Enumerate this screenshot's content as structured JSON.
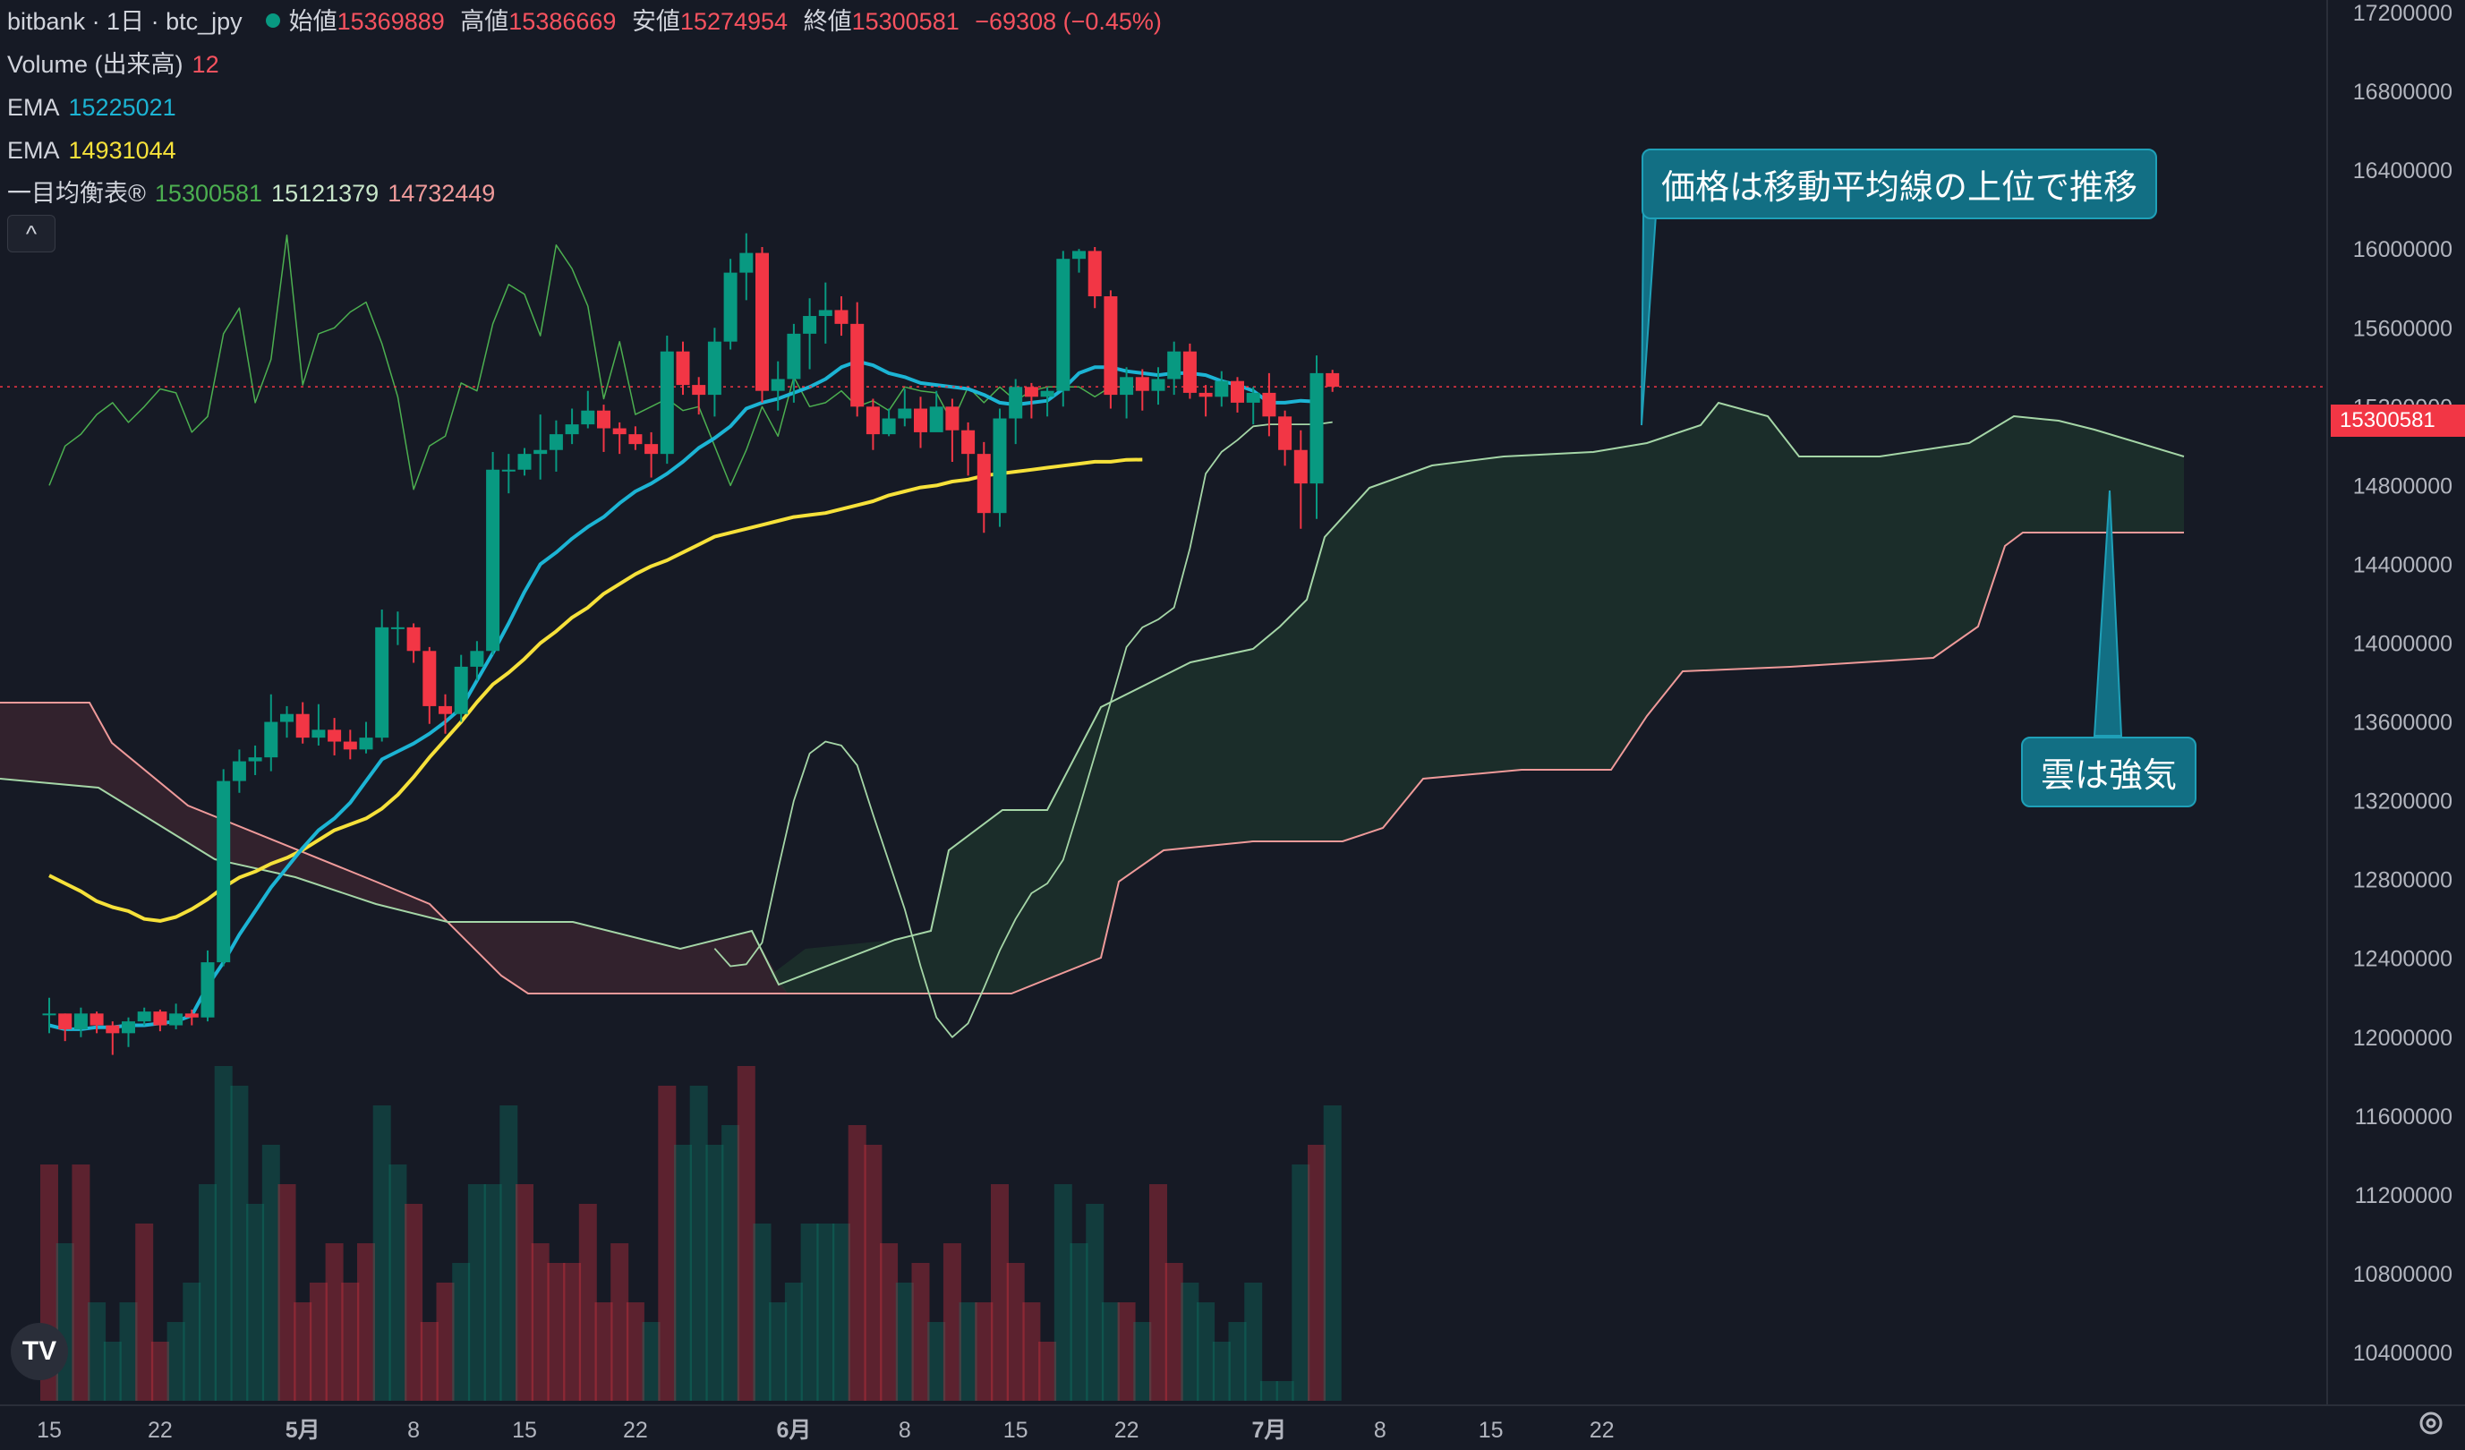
{
  "legend": {
    "symbol": "bitbank · 1日 · btc_jpy",
    "open_label": "始値",
    "open": "15369889",
    "high_label": "高値",
    "high": "15386669",
    "low_label": "安値",
    "low": "15274954",
    "close_label": "終値",
    "close": "15300581",
    "change": "−69308 (−0.45%)",
    "volume_label": "Volume (出来高)",
    "volume_value": "12",
    "ema1_label": "EMA",
    "ema1_value": "15225021",
    "ema2_label": "EMA",
    "ema2_value": "14931044",
    "ichimoku_label": "一目均衡表®",
    "ichimoku_v1": "15300581",
    "ichimoku_v2": "15121379",
    "ichimoku_v3": "14732449",
    "collapse_icon": "^"
  },
  "callouts": {
    "top": "価格は移動平均線の上位で推移",
    "bottom": "雲は強気"
  },
  "current_price_tag": "15300581",
  "logo_text": "TV",
  "colors": {
    "up": "#089981",
    "down": "#f23645",
    "background": "#161a25",
    "ema_fast": "#1cb4d4",
    "ema_slow": "#f6e13a",
    "conversion": "#4caf50",
    "leading_a": "#a5d6a7",
    "leading_b": "#ef9a9a"
  },
  "chart_data": {
    "type": "candlestick",
    "y_axis": {
      "ticks": [
        "17200000",
        "16800000",
        "16400000",
        "16000000",
        "15600000",
        "15200000",
        "14800000",
        "14400000",
        "14000000",
        "13600000",
        "13200000",
        "12800000",
        "12400000",
        "12000000",
        "11600000",
        "11200000",
        "10800000",
        "10400000"
      ],
      "range": [
        10200000,
        17400000
      ]
    },
    "x_axis": {
      "ticks": [
        {
          "label": "15",
          "day": 0
        },
        {
          "label": "22",
          "day": 7
        },
        {
          "label": "5月",
          "day": 16
        },
        {
          "label": "8",
          "day": 23
        },
        {
          "label": "15",
          "day": 30
        },
        {
          "label": "22",
          "day": 37
        },
        {
          "label": "6月",
          "day": 47
        },
        {
          "label": "8",
          "day": 54
        },
        {
          "label": "15",
          "day": 61
        },
        {
          "label": "22",
          "day": 68
        },
        {
          "label": "7月",
          "day": 77
        },
        {
          "label": "8",
          "day": 84
        },
        {
          "label": "15",
          "day": 91
        },
        {
          "label": "22",
          "day": 98
        }
      ]
    },
    "candles": [
      [
        12120000,
        12120000,
        12200000,
        12020000
      ],
      [
        12120000,
        12040000,
        12120000,
        11980000
      ],
      [
        12040000,
        12120000,
        12150000,
        12000000
      ],
      [
        12120000,
        12060000,
        12130000,
        12020000
      ],
      [
        12060000,
        12020000,
        12080000,
        11910000
      ],
      [
        12020000,
        12080000,
        12100000,
        11950000
      ],
      [
        12080000,
        12130000,
        12150000,
        12060000
      ],
      [
        12130000,
        12060000,
        12140000,
        12030000
      ],
      [
        12060000,
        12120000,
        12170000,
        12040000
      ],
      [
        12120000,
        12100000,
        12140000,
        12060000
      ],
      [
        12100000,
        12380000,
        12440000,
        12080000
      ],
      [
        12380000,
        13300000,
        13360000,
        12360000
      ],
      [
        13300000,
        13400000,
        13460000,
        13240000
      ],
      [
        13400000,
        13420000,
        13480000,
        13330000
      ],
      [
        13420000,
        13600000,
        13740000,
        13350000
      ],
      [
        13600000,
        13640000,
        13680000,
        13520000
      ],
      [
        13640000,
        13520000,
        13700000,
        13490000
      ],
      [
        13520000,
        13560000,
        13690000,
        13480000
      ],
      [
        13560000,
        13500000,
        13620000,
        13430000
      ],
      [
        13500000,
        13460000,
        13560000,
        13410000
      ],
      [
        13460000,
        13520000,
        13600000,
        13440000
      ],
      [
        13520000,
        14080000,
        14170000,
        13500000
      ],
      [
        14080000,
        14080000,
        14160000,
        13990000
      ],
      [
        14080000,
        13960000,
        14100000,
        13900000
      ],
      [
        13960000,
        13680000,
        13980000,
        13590000
      ],
      [
        13680000,
        13640000,
        13740000,
        13540000
      ],
      [
        13640000,
        13880000,
        13940000,
        13600000
      ],
      [
        13880000,
        13960000,
        14010000,
        13810000
      ],
      [
        13960000,
        14880000,
        14970000,
        13940000
      ],
      [
        14880000,
        14880000,
        14960000,
        14760000
      ],
      [
        14880000,
        14960000,
        14990000,
        14850000
      ],
      [
        14960000,
        14980000,
        15160000,
        14830000
      ],
      [
        14980000,
        15060000,
        15130000,
        14870000
      ],
      [
        15060000,
        15110000,
        15190000,
        15010000
      ],
      [
        15110000,
        15180000,
        15280000,
        15090000
      ],
      [
        15180000,
        15090000,
        15210000,
        14970000
      ],
      [
        15090000,
        15060000,
        15120000,
        14960000
      ],
      [
        15060000,
        15010000,
        15100000,
        14980000
      ],
      [
        15010000,
        14960000,
        15070000,
        14840000
      ],
      [
        14960000,
        15480000,
        15560000,
        14910000
      ],
      [
        15480000,
        15310000,
        15530000,
        15260000
      ],
      [
        15310000,
        15260000,
        15350000,
        15160000
      ],
      [
        15260000,
        15530000,
        15600000,
        15150000
      ],
      [
        15530000,
        15880000,
        15950000,
        15490000
      ],
      [
        15880000,
        15980000,
        16080000,
        15740000
      ],
      [
        15980000,
        15280000,
        16010000,
        15220000
      ],
      [
        15280000,
        15340000,
        15430000,
        15180000
      ],
      [
        15340000,
        15570000,
        15620000,
        15220000
      ],
      [
        15570000,
        15660000,
        15750000,
        15390000
      ],
      [
        15660000,
        15690000,
        15830000,
        15520000
      ],
      [
        15690000,
        15620000,
        15760000,
        15560000
      ],
      [
        15620000,
        15200000,
        15730000,
        15150000
      ],
      [
        15200000,
        15060000,
        15240000,
        14980000
      ],
      [
        15060000,
        15140000,
        15190000,
        15050000
      ],
      [
        15140000,
        15190000,
        15290000,
        15100000
      ],
      [
        15190000,
        15070000,
        15250000,
        14990000
      ],
      [
        15070000,
        15200000,
        15280000,
        15100000
      ],
      [
        15200000,
        15080000,
        15240000,
        14920000
      ],
      [
        15080000,
        14960000,
        15120000,
        14850000
      ],
      [
        14960000,
        14660000,
        15020000,
        14560000
      ],
      [
        14660000,
        15140000,
        15190000,
        14590000
      ],
      [
        15140000,
        15300000,
        15340000,
        15010000
      ],
      [
        15300000,
        15250000,
        15320000,
        15140000
      ],
      [
        15250000,
        15280000,
        15300000,
        15150000
      ],
      [
        15280000,
        15950000,
        15990000,
        15200000
      ],
      [
        15950000,
        15990000,
        16000000,
        15880000
      ],
      [
        15990000,
        15760000,
        16010000,
        15700000
      ],
      [
        15760000,
        15260000,
        15790000,
        15190000
      ],
      [
        15260000,
        15350000,
        15400000,
        15140000
      ],
      [
        15350000,
        15280000,
        15390000,
        15180000
      ],
      [
        15280000,
        15340000,
        15400000,
        15210000
      ],
      [
        15340000,
        15480000,
        15530000,
        15260000
      ],
      [
        15480000,
        15270000,
        15520000,
        15240000
      ],
      [
        15270000,
        15250000,
        15310000,
        15150000
      ],
      [
        15250000,
        15330000,
        15380000,
        15200000
      ],
      [
        15330000,
        15220000,
        15350000,
        15170000
      ],
      [
        15220000,
        15270000,
        15300000,
        15110000
      ],
      [
        15270000,
        15150000,
        15370000,
        15050000
      ],
      [
        15150000,
        14980000,
        15180000,
        14900000
      ],
      [
        14980000,
        14810000,
        15080000,
        14580000
      ],
      [
        14810000,
        15370000,
        15460000,
        14630000
      ],
      [
        15369889,
        15300581,
        15386669,
        15274954
      ]
    ],
    "volume_bars": [
      [
        12,
        1
      ],
      [
        8,
        0
      ],
      [
        12,
        1
      ],
      [
        5,
        0
      ],
      [
        3,
        0
      ],
      [
        5,
        0
      ],
      [
        9,
        1
      ],
      [
        3,
        1
      ],
      [
        4,
        0
      ],
      [
        6,
        0
      ],
      [
        11,
        0
      ],
      [
        17,
        0
      ],
      [
        16,
        0
      ],
      [
        10,
        0
      ],
      [
        13,
        0
      ],
      [
        11,
        1
      ],
      [
        5,
        1
      ],
      [
        6,
        1
      ],
      [
        8,
        1
      ],
      [
        6,
        1
      ],
      [
        8,
        1
      ],
      [
        15,
        0
      ],
      [
        12,
        0
      ],
      [
        10,
        1
      ],
      [
        4,
        1
      ],
      [
        6,
        1
      ],
      [
        7,
        0
      ],
      [
        11,
        0
      ],
      [
        11,
        0
      ],
      [
        15,
        0
      ],
      [
        11,
        1
      ],
      [
        8,
        1
      ],
      [
        7,
        1
      ],
      [
        7,
        1
      ],
      [
        10,
        1
      ],
      [
        5,
        1
      ],
      [
        8,
        1
      ],
      [
        5,
        1
      ],
      [
        4,
        0
      ],
      [
        16,
        1
      ],
      [
        13,
        0
      ],
      [
        16,
        0
      ],
      [
        13,
        0
      ],
      [
        14,
        0
      ],
      [
        17,
        1
      ],
      [
        9,
        0
      ],
      [
        5,
        0
      ],
      [
        6,
        0
      ],
      [
        9,
        0
      ],
      [
        9,
        0
      ],
      [
        9,
        0
      ],
      [
        14,
        1
      ],
      [
        13,
        1
      ],
      [
        8,
        1
      ],
      [
        6,
        0
      ],
      [
        7,
        1
      ],
      [
        4,
        0
      ],
      [
        8,
        1
      ],
      [
        5,
        0
      ],
      [
        5,
        1
      ],
      [
        11,
        1
      ],
      [
        7,
        1
      ],
      [
        5,
        1
      ],
      [
        3,
        1
      ],
      [
        11,
        0
      ],
      [
        8,
        0
      ],
      [
        10,
        0
      ],
      [
        5,
        0
      ],
      [
        5,
        1
      ],
      [
        4,
        0
      ],
      [
        11,
        1
      ],
      [
        7,
        1
      ],
      [
        6,
        0
      ],
      [
        5,
        0
      ],
      [
        3,
        0
      ],
      [
        4,
        0
      ],
      [
        6,
        0
      ],
      [
        1,
        0
      ],
      [
        1,
        0
      ],
      [
        12,
        0
      ],
      [
        13,
        1
      ],
      [
        15,
        0
      ]
    ],
    "ema_fast": [
      12060000,
      12040000,
      12040000,
      12050000,
      12050000,
      12060000,
      12060000,
      12070000,
      12080000,
      12110000,
      12260000,
      12380000,
      12520000,
      12640000,
      12760000,
      12860000,
      12960000,
      13050000,
      13110000,
      13190000,
      13300000,
      13410000,
      13450000,
      13490000,
      13540000,
      13600000,
      13670000,
      13810000,
      13950000,
      14100000,
      14260000,
      14400000,
      14460000,
      14530000,
      14590000,
      14640000,
      14710000,
      14770000,
      14810000,
      14860000,
      14920000,
      14990000,
      15040000,
      15100000,
      15190000,
      15220000,
      15240000,
      15270000,
      15300000,
      15340000,
      15400000,
      15430000,
      15410000,
      15370000,
      15350000,
      15320000,
      15310000,
      15300000,
      15290000,
      15260000,
      15220000,
      15210000,
      15220000,
      15230000,
      15290000,
      15370000,
      15400000,
      15400000,
      15380000,
      15370000,
      15360000,
      15370000,
      15370000,
      15360000,
      15330000,
      15310000,
      15280000,
      15220000,
      15220000,
      15230000,
      15225021
    ],
    "ema_slow": [
      12820000,
      12780000,
      12740000,
      12690000,
      12660000,
      12640000,
      12600000,
      12590000,
      12610000,
      12650000,
      12700000,
      12760000,
      12810000,
      12840000,
      12880000,
      12910000,
      12950000,
      13000000,
      13050000,
      13080000,
      13110000,
      13160000,
      13230000,
      13320000,
      13420000,
      13510000,
      13600000,
      13700000,
      13790000,
      13850000,
      13920000,
      14000000,
      14060000,
      14130000,
      14180000,
      14250000,
      14300000,
      14350000,
      14390000,
      14420000,
      14460000,
      14500000,
      14540000,
      14560000,
      14580000,
      14600000,
      14620000,
      14640000,
      14650000,
      14660000,
      14680000,
      14700000,
      14720000,
      14750000,
      14770000,
      14790000,
      14800000,
      14820000,
      14830000,
      14850000,
      14860000,
      14870000,
      14880000,
      14890000,
      14900000,
      14910000,
      14920000,
      14920000,
      14930000,
      14931044
    ],
    "conversion_line": [
      14800000,
      15000000,
      15060000,
      15160000,
      15220000,
      15120000,
      15200000,
      15290000,
      15270000,
      15070000,
      15150000,
      15570000,
      15700000,
      15220000,
      15440000,
      16070000,
      15310000,
      15570000,
      15600000,
      15680000,
      15730000,
      15520000,
      15250000,
      14780000,
      15000000,
      15050000,
      15320000,
      15280000,
      15620000,
      15820000,
      15770000,
      15560000,
      16020000,
      15900000,
      15710000,
      15240000,
      15530000,
      15160000,
      15200000,
      15240000,
      15180000,
      15200000,
      15000000,
      14800000,
      14980000,
      15200000,
      15050000,
      15350000,
      15200000,
      15220000,
      15280000,
      15200000,
      15230000,
      15180000,
      15300000,
      15280000,
      15270000,
      15120000,
      15300000,
      15220000,
      15300000,
      15230000,
      15280000,
      15300000,
      15300000,
      15300000,
      15250000,
      15300000,
      15300581
    ],
    "base_line": [
      12450000,
      12360000,
      12370000,
      12480000,
      12850000,
      13200000,
      13440000,
      13500000,
      13480000,
      13380000,
      13130000,
      12890000,
      12650000,
      12360000,
      12100000,
      12000000,
      12070000,
      12250000,
      12440000,
      12600000,
      12730000,
      12780000,
      12900000,
      13160000,
      13430000,
      13700000,
      13980000,
      14080000,
      14120000,
      14180000,
      14480000,
      14860000,
      14970000,
      15030000,
      15100000,
      15110000,
      15110000,
      15110000,
      15110000,
      15121379
    ],
    "leading_a": [],
    "leading_b": []
  }
}
